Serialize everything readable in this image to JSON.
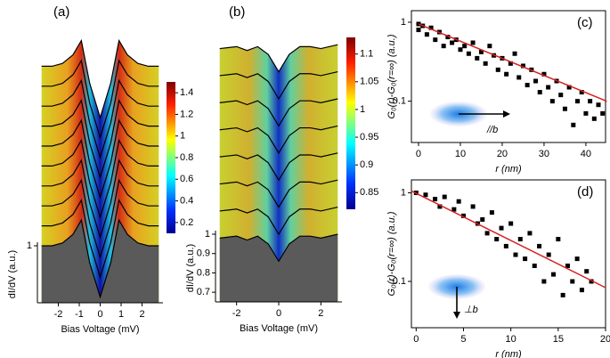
{
  "chart_data": [
    {
      "type": "waterfall",
      "label": "(a)",
      "xlabel": "Bias Voltage (mV)",
      "ylabel": "dI/dV (a.u.)",
      "xlim": [
        -3,
        3
      ],
      "xticks": [
        -2,
        -1,
        0,
        1,
        2
      ],
      "ylim": [
        0,
        5.0
      ],
      "yticks": [
        1
      ],
      "x": [
        -2.8,
        -2.3,
        -1.8,
        -1.3,
        -0.9,
        -0.5,
        0,
        0.5,
        0.9,
        1.3,
        1.8,
        2.3,
        2.8
      ],
      "series": [
        {
          "color": "#000000",
          "values": [
            1.0,
            1.0,
            1.05,
            1.2,
            1.45,
            0.7,
            0.1,
            0.7,
            1.45,
            1.2,
            1.05,
            1.0,
            1.0
          ]
        },
        {
          "color": "#000000",
          "values": [
            1.35,
            1.35,
            1.4,
            1.55,
            1.8,
            1.05,
            0.45,
            1.05,
            1.8,
            1.55,
            1.4,
            1.35,
            1.35
          ]
        },
        {
          "color": "#000000",
          "values": [
            1.7,
            1.7,
            1.75,
            1.9,
            2.15,
            1.4,
            0.8,
            1.4,
            2.15,
            1.9,
            1.75,
            1.7,
            1.7
          ]
        },
        {
          "color": "#000000",
          "values": [
            2.05,
            2.05,
            2.1,
            2.25,
            2.5,
            1.75,
            1.15,
            1.75,
            2.5,
            2.25,
            2.1,
            2.05,
            2.05
          ]
        },
        {
          "color": "#000000",
          "values": [
            2.4,
            2.4,
            2.45,
            2.6,
            2.85,
            2.1,
            1.5,
            2.1,
            2.85,
            2.6,
            2.45,
            2.4,
            2.4
          ]
        },
        {
          "color": "#000000",
          "values": [
            2.75,
            2.75,
            2.8,
            2.95,
            3.2,
            2.45,
            1.85,
            2.45,
            3.2,
            2.95,
            2.8,
            2.75,
            2.75
          ]
        },
        {
          "color": "#000000",
          "values": [
            3.1,
            3.1,
            3.15,
            3.3,
            3.55,
            2.8,
            2.2,
            2.8,
            3.55,
            3.3,
            3.15,
            3.1,
            3.1
          ]
        },
        {
          "color": "#000000",
          "values": [
            3.45,
            3.45,
            3.5,
            3.65,
            3.9,
            3.15,
            2.55,
            3.15,
            3.9,
            3.65,
            3.5,
            3.45,
            3.45
          ]
        },
        {
          "color": "#000000",
          "values": [
            3.8,
            3.8,
            3.85,
            4.0,
            4.25,
            3.5,
            2.9,
            3.5,
            4.25,
            4.0,
            3.85,
            3.8,
            3.8
          ]
        },
        {
          "color": "#000000",
          "values": [
            4.15,
            4.15,
            4.2,
            4.35,
            4.6,
            3.85,
            3.25,
            3.85,
            4.6,
            4.35,
            4.2,
            4.15,
            4.15
          ]
        }
      ],
      "colorbar": {
        "ylim": [
          0.1,
          1.5
        ],
        "yticks": [
          0.2,
          0.4,
          0.6,
          0.8,
          1,
          1.2,
          1.4
        ]
      }
    },
    {
      "type": "waterfall",
      "label": "(b)",
      "xlabel": "Bias Voltage (mV)",
      "ylabel": "dI/dV (a.u.)",
      "xlim": [
        -3,
        3
      ],
      "xticks": [
        -2,
        0,
        2
      ],
      "ylim": [
        0.65,
        2.05
      ],
      "yticks": [
        0.7,
        0.8,
        0.9,
        1
      ],
      "x": [
        -2.8,
        -2,
        -1.5,
        -1,
        -0.5,
        0,
        0.5,
        1,
        1.5,
        2,
        2.8
      ],
      "series": [
        {
          "color": "#000000",
          "values": [
            0.98,
            0.99,
            0.97,
            0.99,
            0.95,
            0.86,
            0.95,
            0.99,
            0.99,
            0.98,
            1.0
          ]
        },
        {
          "color": "#000000",
          "values": [
            1.12,
            1.13,
            1.11,
            1.13,
            1.09,
            1.0,
            1.09,
            1.13,
            1.13,
            1.12,
            1.14
          ]
        },
        {
          "color": "#000000",
          "values": [
            1.26,
            1.27,
            1.25,
            1.27,
            1.23,
            1.14,
            1.23,
            1.27,
            1.27,
            1.26,
            1.28
          ]
        },
        {
          "color": "#000000",
          "values": [
            1.4,
            1.41,
            1.39,
            1.41,
            1.37,
            1.28,
            1.37,
            1.41,
            1.41,
            1.4,
            1.42
          ]
        },
        {
          "color": "#000000",
          "values": [
            1.54,
            1.55,
            1.53,
            1.55,
            1.51,
            1.42,
            1.51,
            1.55,
            1.55,
            1.54,
            1.56
          ]
        },
        {
          "color": "#000000",
          "values": [
            1.68,
            1.69,
            1.67,
            1.69,
            1.65,
            1.56,
            1.65,
            1.69,
            1.69,
            1.68,
            1.7
          ]
        },
        {
          "color": "#000000",
          "values": [
            1.82,
            1.83,
            1.81,
            1.83,
            1.79,
            1.7,
            1.79,
            1.83,
            1.83,
            1.82,
            1.84
          ]
        },
        {
          "color": "#000000",
          "values": [
            1.96,
            1.97,
            1.95,
            1.97,
            1.93,
            1.84,
            1.93,
            1.97,
            1.97,
            1.96,
            1.98
          ]
        }
      ],
      "colorbar": {
        "ylim": [
          0.82,
          1.13
        ],
        "yticks": [
          0.85,
          0.9,
          0.95,
          1,
          1.05,
          1.1
        ]
      }
    },
    {
      "type": "scatter",
      "label": "(c)",
      "xlabel": "r (nm)",
      "ylabel": "G₀(r)-G₀(r=∞) (a.u.)",
      "annotation": "//b",
      "xlim": [
        -1.7,
        44.7
      ],
      "xticks": [
        0,
        10,
        20,
        30,
        40
      ],
      "ylim": [
        0.03,
        1.4
      ],
      "yticks": [
        0.1,
        1
      ],
      "ylog": true,
      "color": "#000000",
      "x": [
        0,
        0,
        1,
        2,
        3,
        4,
        5,
        6,
        7,
        8,
        9,
        10,
        11,
        12,
        13,
        14,
        15,
        16,
        17,
        18,
        19,
        20,
        21,
        22,
        23,
        24,
        25,
        26,
        27,
        28,
        29,
        30,
        31,
        32,
        33,
        34,
        35,
        36,
        37,
        38,
        39,
        40,
        41,
        42,
        43,
        44
      ],
      "values": [
        0.95,
        0.8,
        0.9,
        0.7,
        0.85,
        0.6,
        0.75,
        0.5,
        0.65,
        0.55,
        0.6,
        0.45,
        0.5,
        0.4,
        0.55,
        0.35,
        0.42,
        0.3,
        0.5,
        0.38,
        0.25,
        0.35,
        0.22,
        0.3,
        0.4,
        0.2,
        0.28,
        0.16,
        0.25,
        0.18,
        0.13,
        0.22,
        0.15,
        0.1,
        0.18,
        0.12,
        0.08,
        0.15,
        0.05,
        0.1,
        0.13,
        0.07,
        0.1,
        0.06,
        0.09,
        0.07
      ],
      "fit": {
        "color": "#d62020",
        "x": [
          0,
          45
        ],
        "values": [
          0.95,
          0.1
        ]
      }
    },
    {
      "type": "scatter",
      "label": "(d)",
      "xlabel": "r (nm)",
      "ylabel": "G₀(r)-G₀(r=∞) (a.u.)",
      "annotation": "⊥b",
      "xlim": [
        -0.5,
        20
      ],
      "xticks": [
        0,
        5,
        10,
        15,
        20
      ],
      "ylim": [
        0.03,
        1.4
      ],
      "yticks": [
        0.1,
        1
      ],
      "ylog": true,
      "color": "#000000",
      "x": [
        0,
        1,
        2,
        2.5,
        3,
        4,
        4.5,
        5,
        6,
        6.5,
        7,
        7.5,
        8,
        8.5,
        9,
        9.5,
        10,
        10.5,
        11,
        11.5,
        12,
        12.5,
        13,
        13.5,
        14,
        14.5,
        15,
        15.5,
        16,
        16.5,
        17,
        17.5,
        18,
        18.5
      ],
      "values": [
        1.0,
        0.95,
        0.85,
        0.7,
        0.9,
        0.65,
        0.8,
        0.55,
        0.7,
        0.45,
        0.5,
        0.35,
        0.6,
        0.3,
        0.4,
        0.25,
        0.45,
        0.2,
        0.3,
        0.18,
        0.35,
        0.15,
        0.25,
        0.1,
        0.2,
        0.12,
        0.3,
        0.07,
        0.15,
        0.1,
        0.18,
        0.08,
        0.13,
        0.1
      ],
      "fit": {
        "color": "#d62020",
        "x": [
          -0.5,
          20
        ],
        "values": [
          1.05,
          0.085
        ]
      }
    }
  ]
}
